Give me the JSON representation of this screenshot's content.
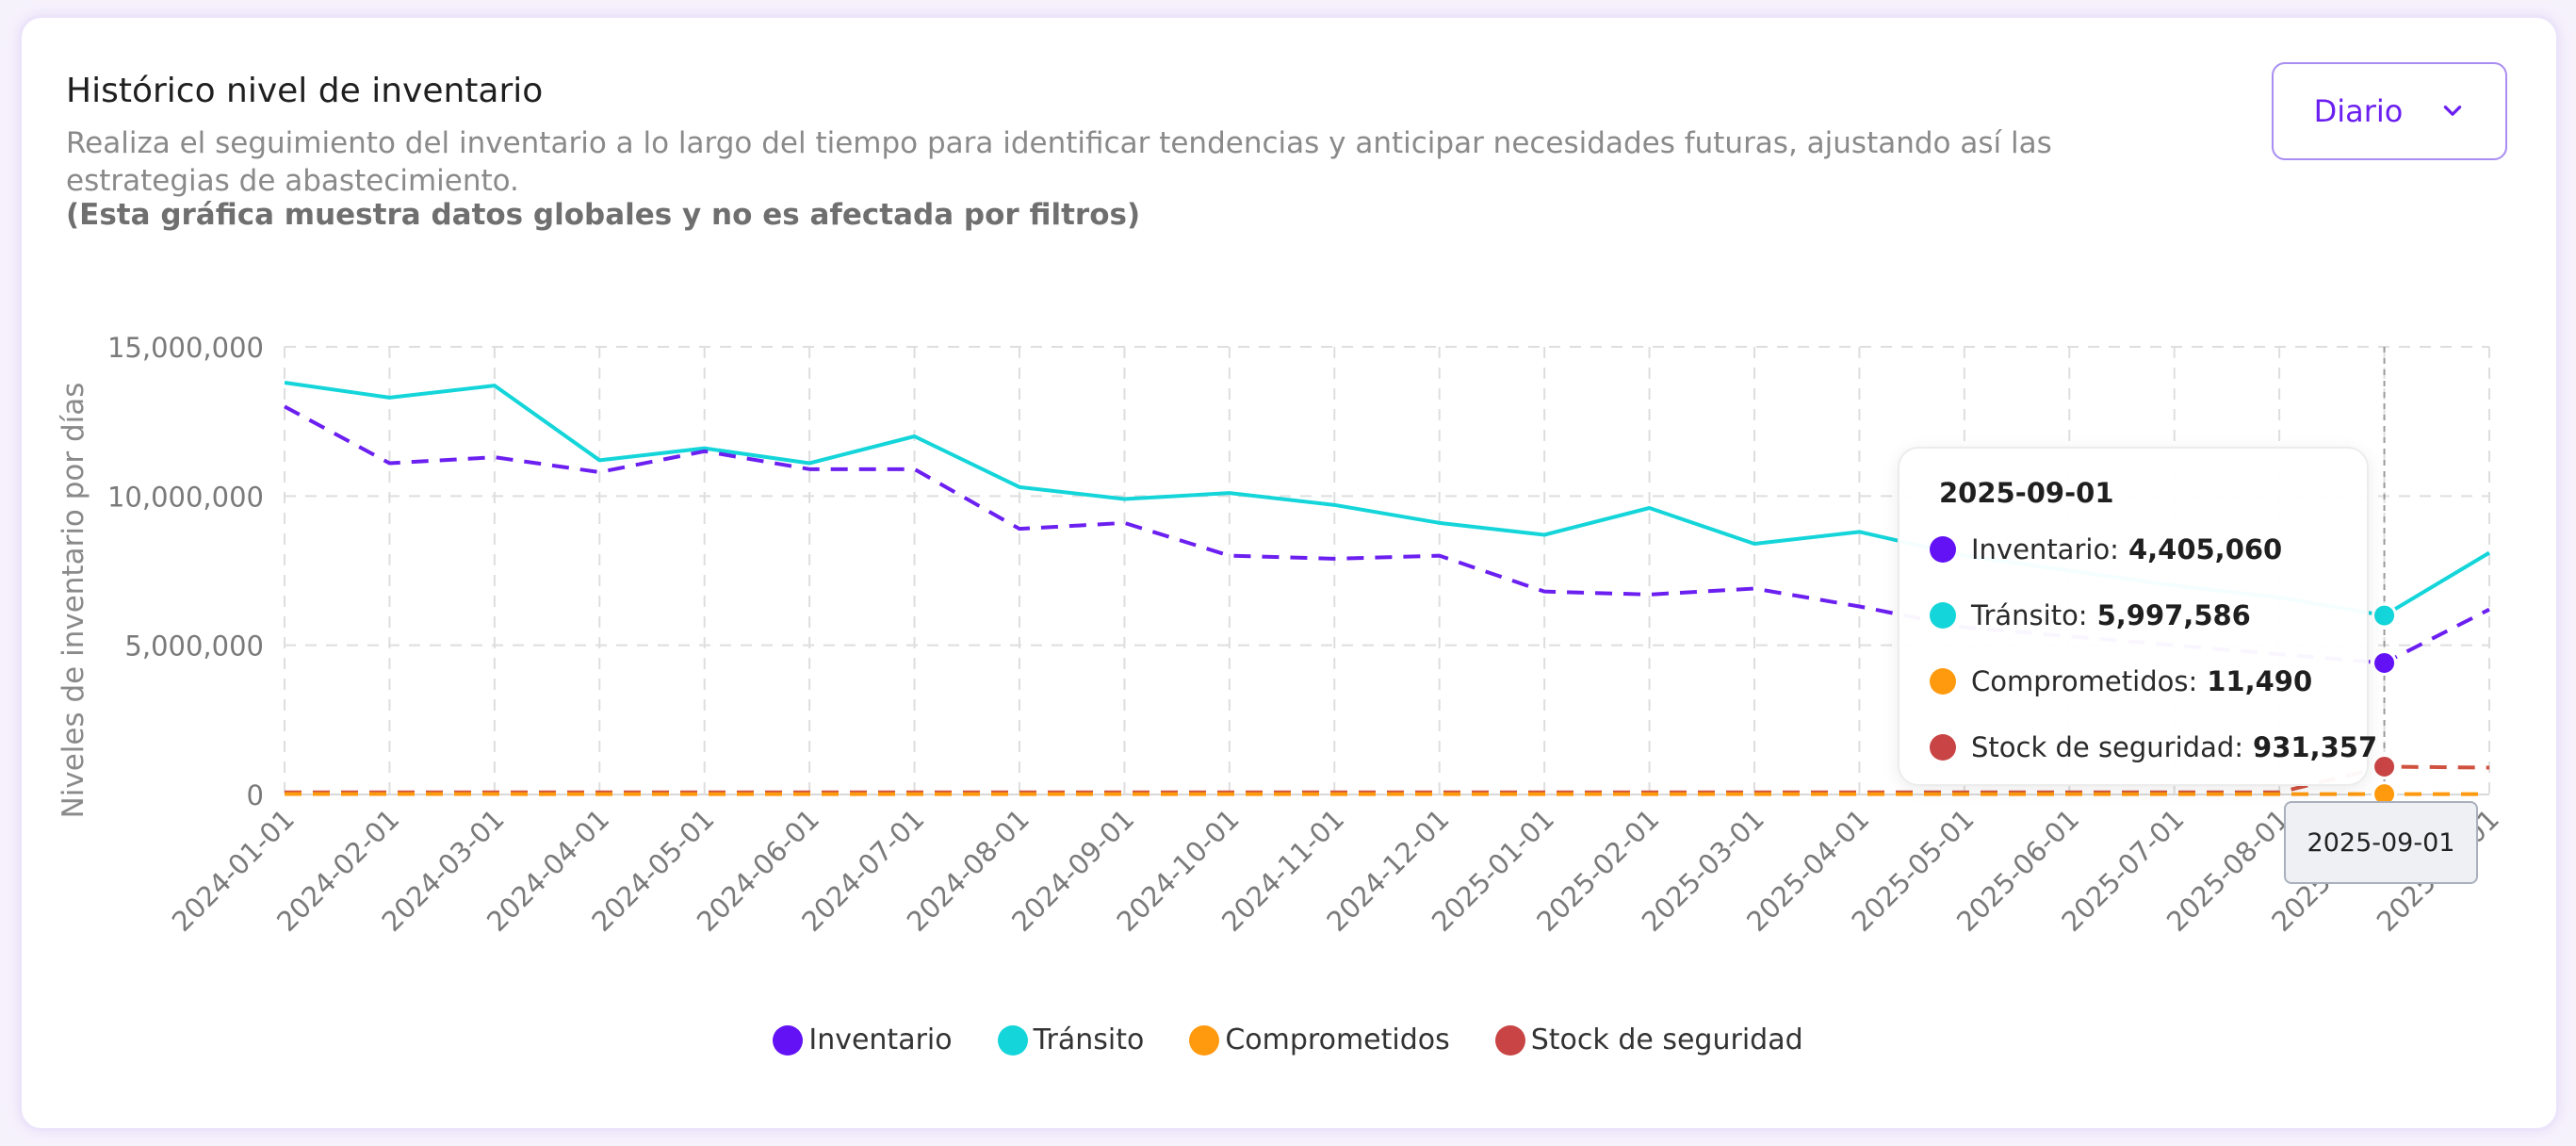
{
  "header": {
    "title": "Histórico nivel de inventario",
    "subtitle": "Realiza el seguimiento del inventario a lo largo del tiempo para identificar tendencias y anticipar necesidades futuras, ajustando así las estrategias de abastecimiento.",
    "note": "(Esta gráfica muestra datos globales y no es afectada por filtros)"
  },
  "dropdown": {
    "label": "Diario"
  },
  "tooltip": {
    "date": "2025-09-01",
    "rows": [
      {
        "label": "Inventario:",
        "value": "4,405,060",
        "color": "#6312f5"
      },
      {
        "label": "Tránsito:",
        "value": "5,997,586",
        "color": "#14d5d9"
      },
      {
        "label": "Comprometidos:",
        "value": "11,490",
        "color": "#ff9a0f"
      },
      {
        "label": "Stock de seguridad:",
        "value": "931,357",
        "color": "#c94444"
      }
    ]
  },
  "axis_pointer_label": "2025-09-01",
  "chart_data": {
    "type": "line",
    "title": "Histórico nivel de inventario",
    "xlabel": "",
    "ylabel": "Niveles de inventario por días",
    "ylim": [
      0,
      15000000
    ],
    "yticks": [
      0,
      5000000,
      10000000,
      15000000
    ],
    "ytick_labels": [
      "0",
      "5,000,000",
      "10,000,000",
      "15,000,000"
    ],
    "grid": true,
    "legend_position": "bottom",
    "x": [
      "2024-01-01",
      "2024-02-01",
      "2024-03-01",
      "2024-04-01",
      "2024-05-01",
      "2024-06-01",
      "2024-07-01",
      "2024-08-01",
      "2024-09-01",
      "2024-10-01",
      "2024-11-01",
      "2024-12-01",
      "2025-01-01",
      "2025-02-01",
      "2025-03-01",
      "2025-04-01",
      "2025-05-01",
      "2025-06-01",
      "2025-07-01",
      "2025-08-01",
      "2025-09-01",
      "2025-10-01"
    ],
    "series": [
      {
        "name": "Inventario",
        "color": "#6b1ff0",
        "dashed": true,
        "values": [
          13000000,
          11100000,
          11300000,
          10800000,
          11500000,
          10900000,
          10900000,
          8900000,
          9100000,
          8000000,
          7900000,
          8000000,
          6800000,
          6700000,
          6900000,
          6300000,
          5600000,
          5300000,
          5000000,
          4700000,
          4405060,
          6200000
        ]
      },
      {
        "name": "Tránsito",
        "color": "#14d5d9",
        "dashed": false,
        "values": [
          13800000,
          13300000,
          13700000,
          11200000,
          11600000,
          11100000,
          12000000,
          10300000,
          9900000,
          10100000,
          9700000,
          9100000,
          8700000,
          9600000,
          8400000,
          8800000,
          8000000,
          7500000,
          7000000,
          6600000,
          5997586,
          8100000
        ]
      },
      {
        "name": "Comprometidos",
        "color": "#ff9a0f",
        "dashed": true,
        "values": [
          15000,
          14000,
          14000,
          13000,
          13000,
          13000,
          12000,
          12000,
          12000,
          12000,
          12000,
          12000,
          12000,
          12000,
          12000,
          12000,
          12000,
          12000,
          12000,
          11500,
          11490,
          11400
        ]
      },
      {
        "name": "Stock de seguridad",
        "color": "#d1513f",
        "dashed": true,
        "values": [
          70000,
          70000,
          70000,
          70000,
          70000,
          70000,
          70000,
          70000,
          70000,
          70000,
          70000,
          70000,
          70000,
          70000,
          70000,
          70000,
          70000,
          70000,
          70000,
          70000,
          931357,
          900000
        ]
      }
    ],
    "highlight_date": "2025-09-01"
  }
}
